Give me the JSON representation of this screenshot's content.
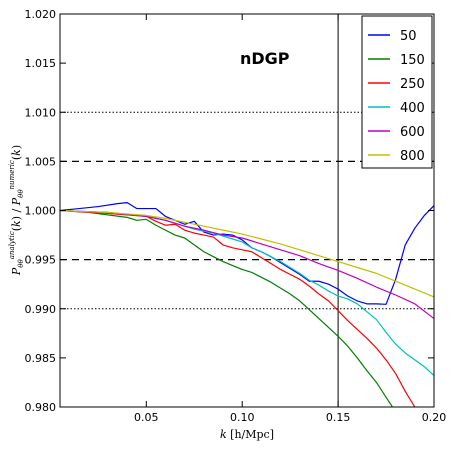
{
  "chart_data": {
    "type": "line",
    "title": "",
    "annotation": "nDGP",
    "xlabel": "k [h/Mpc]",
    "xlabel_k": "k",
    "xlabel_unit": "[h/Mpc]",
    "ylabel": "P_θθ^analytic(k) / P_θθ^numeric(k)",
    "xlim": [
      0.005,
      0.2
    ],
    "ylim": [
      0.98,
      1.02
    ],
    "x_ticks": [
      "0.05",
      "0.10",
      "0.15",
      "0.20"
    ],
    "y_ticks": [
      "0.980",
      "0.985",
      "0.990",
      "0.995",
      "1.000",
      "1.005",
      "1.010",
      "1.015",
      "1.020"
    ],
    "legend_position": "top-right",
    "reference_lines": {
      "dashed_y": [
        1.005,
        0.995
      ],
      "dotted_y": [
        1.01,
        0.99
      ],
      "solid_x": [
        0.15
      ]
    },
    "series": [
      {
        "name": "50",
        "color": "#0000ff",
        "x": [
          0.005,
          0.015,
          0.025,
          0.035,
          0.04,
          0.045,
          0.05,
          0.055,
          0.06,
          0.065,
          0.07,
          0.075,
          0.08,
          0.085,
          0.09,
          0.095,
          0.1,
          0.105,
          0.11,
          0.115,
          0.12,
          0.125,
          0.13,
          0.135,
          0.14,
          0.145,
          0.15,
          0.155,
          0.16,
          0.165,
          0.17,
          0.175,
          0.18,
          0.185,
          0.19,
          0.195,
          0.2
        ],
        "y": [
          1.0,
          1.0002,
          1.0004,
          1.0007,
          1.0008,
          1.0002,
          1.0002,
          1.0002,
          0.9994,
          0.999,
          0.9986,
          0.9989,
          0.9978,
          0.9975,
          0.9976,
          0.9975,
          0.997,
          0.9962,
          0.9958,
          0.9953,
          0.9947,
          0.9941,
          0.9935,
          0.9928,
          0.9928,
          0.9925,
          0.992,
          0.9913,
          0.9908,
          0.9905,
          0.9905,
          0.99045,
          0.993,
          0.9965,
          0.9982,
          0.9995,
          1.0005
        ]
      },
      {
        "name": "150",
        "color": "#008000",
        "x": [
          0.005,
          0.02,
          0.04,
          0.045,
          0.05,
          0.055,
          0.06,
          0.065,
          0.07,
          0.075,
          0.08,
          0.085,
          0.09,
          0.095,
          0.1,
          0.105,
          0.11,
          0.115,
          0.12,
          0.125,
          0.13,
          0.135,
          0.14,
          0.145,
          0.15,
          0.155,
          0.16,
          0.165,
          0.17,
          0.175,
          0.18,
          0.185
        ],
        "y": [
          1.0,
          0.9998,
          0.9993,
          0.999,
          0.9991,
          0.9985,
          0.998,
          0.9975,
          0.9972,
          0.9965,
          0.9958,
          0.9953,
          0.9948,
          0.9944,
          0.994,
          0.9937,
          0.9932,
          0.9927,
          0.9921,
          0.9915,
          0.9908,
          0.9899,
          0.989,
          0.9881,
          0.9872,
          0.9862,
          0.985,
          0.9837,
          0.9825,
          0.981,
          0.9795,
          0.978
        ]
      },
      {
        "name": "250",
        "color": "#ff0000",
        "x": [
          0.005,
          0.03,
          0.05,
          0.055,
          0.06,
          0.065,
          0.07,
          0.075,
          0.08,
          0.085,
          0.09,
          0.095,
          0.1,
          0.105,
          0.11,
          0.115,
          0.12,
          0.125,
          0.13,
          0.135,
          0.14,
          0.145,
          0.15,
          0.155,
          0.16,
          0.165,
          0.17,
          0.175,
          0.18,
          0.185,
          0.19
        ],
        "y": [
          1.0,
          0.9997,
          0.9994,
          0.9989,
          0.9985,
          0.9986,
          0.998,
          0.9977,
          0.9975,
          0.9973,
          0.9965,
          0.9962,
          0.996,
          0.9958,
          0.9952,
          0.9946,
          0.994,
          0.9935,
          0.993,
          0.9923,
          0.9915,
          0.9908,
          0.9898,
          0.9888,
          0.9879,
          0.987,
          0.986,
          0.9848,
          0.9834,
          0.9816,
          0.98
        ]
      },
      {
        "name": "400",
        "color": "#00bfbf",
        "x": [
          0.005,
          0.03,
          0.05,
          0.06,
          0.065,
          0.07,
          0.075,
          0.08,
          0.085,
          0.09,
          0.095,
          0.1,
          0.105,
          0.11,
          0.115,
          0.12,
          0.125,
          0.13,
          0.135,
          0.14,
          0.145,
          0.15,
          0.155,
          0.16,
          0.165,
          0.17,
          0.175,
          0.18,
          0.185,
          0.19,
          0.195,
          0.2
        ],
        "y": [
          1.0,
          0.9998,
          0.9994,
          0.999,
          0.9987,
          0.9984,
          0.9981,
          0.9979,
          0.9977,
          0.9974,
          0.9971,
          0.9968,
          0.9962,
          0.9958,
          0.9953,
          0.9948,
          0.9942,
          0.9936,
          0.9929,
          0.9924,
          0.9918,
          0.9913,
          0.991,
          0.9905,
          0.9897,
          0.9889,
          0.9876,
          0.9864,
          0.9855,
          0.9848,
          0.9841,
          0.9832
        ]
      },
      {
        "name": "600",
        "color": "#bf00bf",
        "x": [
          0.005,
          0.03,
          0.05,
          0.06,
          0.07,
          0.08,
          0.09,
          0.1,
          0.11,
          0.12,
          0.13,
          0.14,
          0.15,
          0.16,
          0.17,
          0.18,
          0.19,
          0.2
        ],
        "y": [
          1.0,
          0.9998,
          0.9994,
          0.999,
          0.9984,
          0.998,
          0.9975,
          0.9972,
          0.9966,
          0.996,
          0.9954,
          0.9946,
          0.9939,
          0.9931,
          0.9922,
          0.9914,
          0.9905,
          0.989
        ]
      },
      {
        "name": "800",
        "color": "#bfbf00",
        "x": [
          0.005,
          0.03,
          0.05,
          0.06,
          0.07,
          0.08,
          0.09,
          0.1,
          0.11,
          0.12,
          0.13,
          0.14,
          0.15,
          0.16,
          0.17,
          0.18,
          0.19,
          0.2
        ],
        "y": [
          1.0,
          0.9998,
          0.9995,
          0.9992,
          0.9988,
          0.9984,
          0.998,
          0.9976,
          0.9971,
          0.9966,
          0.996,
          0.9954,
          0.9948,
          0.9942,
          0.9936,
          0.9928,
          0.992,
          0.9912
        ]
      }
    ]
  }
}
